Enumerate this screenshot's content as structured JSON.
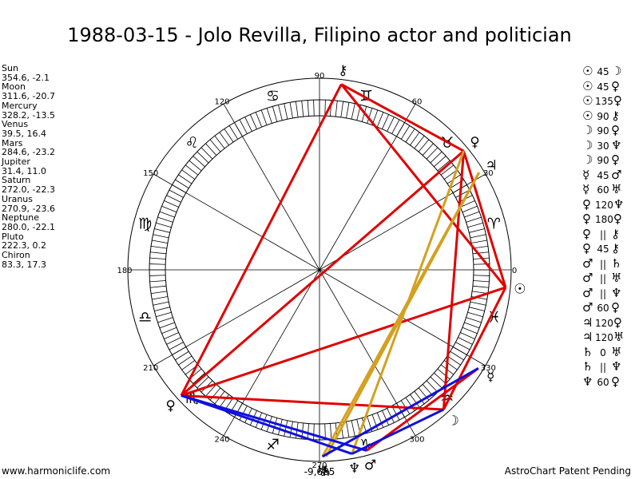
{
  "title": "1988-03-15 - Jolo Revilla, Filipino actor and politician",
  "footer": {
    "left": "www.harmoniclife.com",
    "right": "AstroChart Patent Pending"
  },
  "planets": [
    {
      "name": "Sun",
      "coords": "354.6, -2.1",
      "symbol": "☉",
      "lon": 354.6
    },
    {
      "name": "Moon",
      "coords": "311.6, -20.7",
      "symbol": "☽",
      "lon": 311.6
    },
    {
      "name": "Mercury",
      "coords": "328.2, -13.5",
      "symbol": "☿",
      "lon": 328.2
    },
    {
      "name": "Venus",
      "coords": "39.5, 16.4",
      "symbol": "♀",
      "lon": 39.5
    },
    {
      "name": "Mars",
      "coords": "284.6, -23.2",
      "symbol": "♂",
      "lon": 284.6
    },
    {
      "name": "Jupiter",
      "coords": "31.4, 11.0",
      "symbol": "♃",
      "lon": 31.4
    },
    {
      "name": "Saturn",
      "coords": "272.0, -22.3",
      "symbol": "♄",
      "lon": 272.0
    },
    {
      "name": "Uranus",
      "coords": "270.9, -23.6",
      "symbol": "♅",
      "lon": 270.9
    },
    {
      "name": "Neptune",
      "coords": "280.0, -22.1",
      "symbol": "♆",
      "lon": 280.0
    },
    {
      "name": "Pluto",
      "coords": "222.3, 0.2",
      "symbol": "♀",
      "lon": 222.3
    },
    {
      "name": "Chiron",
      "coords": "83.3, 17.3",
      "symbol": "⚷",
      "lon": 83.3
    }
  ],
  "zodiac_signs": [
    "♈",
    "♉",
    "♊",
    "♋",
    "♌",
    "♍",
    "♎",
    "♏",
    "♐",
    "♑",
    "♒",
    "♓"
  ],
  "degree_labels": [
    "0",
    "30",
    "60",
    "90",
    "120",
    "150",
    "180",
    "210",
    "240",
    "270",
    "300",
    "330"
  ],
  "bottom_value": "-9,685",
  "aspects": [
    {
      "a": "☉",
      "asp": "45",
      "b": "☽"
    },
    {
      "a": "☉",
      "asp": "45",
      "b": "♀"
    },
    {
      "a": "☉",
      "asp": "135",
      "b": "♀"
    },
    {
      "a": "☉",
      "asp": "90",
      "b": "⚷"
    },
    {
      "a": "☽",
      "asp": "90",
      "b": "♀"
    },
    {
      "a": "☽",
      "asp": "30",
      "b": "♆"
    },
    {
      "a": "☽",
      "asp": "90",
      "b": "♀"
    },
    {
      "a": "☿",
      "asp": "45",
      "b": "♂"
    },
    {
      "a": "☿",
      "asp": "60",
      "b": "♅"
    },
    {
      "a": "♀",
      "asp": "120",
      "b": "♆"
    },
    {
      "a": "♀",
      "asp": "180",
      "b": "♀"
    },
    {
      "a": "♀",
      "asp": "||",
      "b": "⚷"
    },
    {
      "a": "♀",
      "asp": "45",
      "b": "⚷"
    },
    {
      "a": "♂",
      "asp": "||",
      "b": "♄"
    },
    {
      "a": "♂",
      "asp": "||",
      "b": "♅"
    },
    {
      "a": "♂",
      "asp": "||",
      "b": "♆"
    },
    {
      "a": "♂",
      "asp": "60",
      "b": "♀"
    },
    {
      "a": "♃",
      "asp": "120",
      "b": "♀"
    },
    {
      "a": "♃",
      "asp": "120",
      "b": "♅"
    },
    {
      "a": "♄",
      "asp": "0",
      "b": "♅"
    },
    {
      "a": "♄",
      "asp": "||",
      "b": "♆"
    },
    {
      "a": "♆",
      "asp": "60",
      "b": "♀"
    }
  ],
  "aspect_lines": [
    {
      "from": 354.6,
      "to": 311.6,
      "color": "#e00000"
    },
    {
      "from": 354.6,
      "to": 39.5,
      "color": "#e00000"
    },
    {
      "from": 354.6,
      "to": 222.3,
      "color": "#e00000"
    },
    {
      "from": 354.6,
      "to": 83.3,
      "color": "#e00000"
    },
    {
      "from": 311.6,
      "to": 39.5,
      "color": "#e00000"
    },
    {
      "from": 311.6,
      "to": 222.3,
      "color": "#e00000"
    },
    {
      "from": 328.2,
      "to": 284.6,
      "color": "#e00000"
    },
    {
      "from": 39.5,
      "to": 222.3,
      "color": "#e00000"
    },
    {
      "from": 39.5,
      "to": 83.3,
      "color": "#e00000"
    },
    {
      "from": 222.3,
      "to": 83.3,
      "color": "#e00000"
    },
    {
      "from": 39.5,
      "to": 280.0,
      "color": "#d4a020"
    },
    {
      "from": 31.4,
      "to": 272.0,
      "color": "#d4a020"
    },
    {
      "from": 31.4,
      "to": 270.9,
      "color": "#d4a020"
    },
    {
      "from": 311.6,
      "to": 280.0,
      "color": "#1010e0"
    },
    {
      "from": 328.2,
      "to": 270.9,
      "color": "#1010e0"
    },
    {
      "from": 284.6,
      "to": 222.3,
      "color": "#1010e0"
    },
    {
      "from": 280.0,
      "to": 222.3,
      "color": "#1010e0"
    }
  ]
}
